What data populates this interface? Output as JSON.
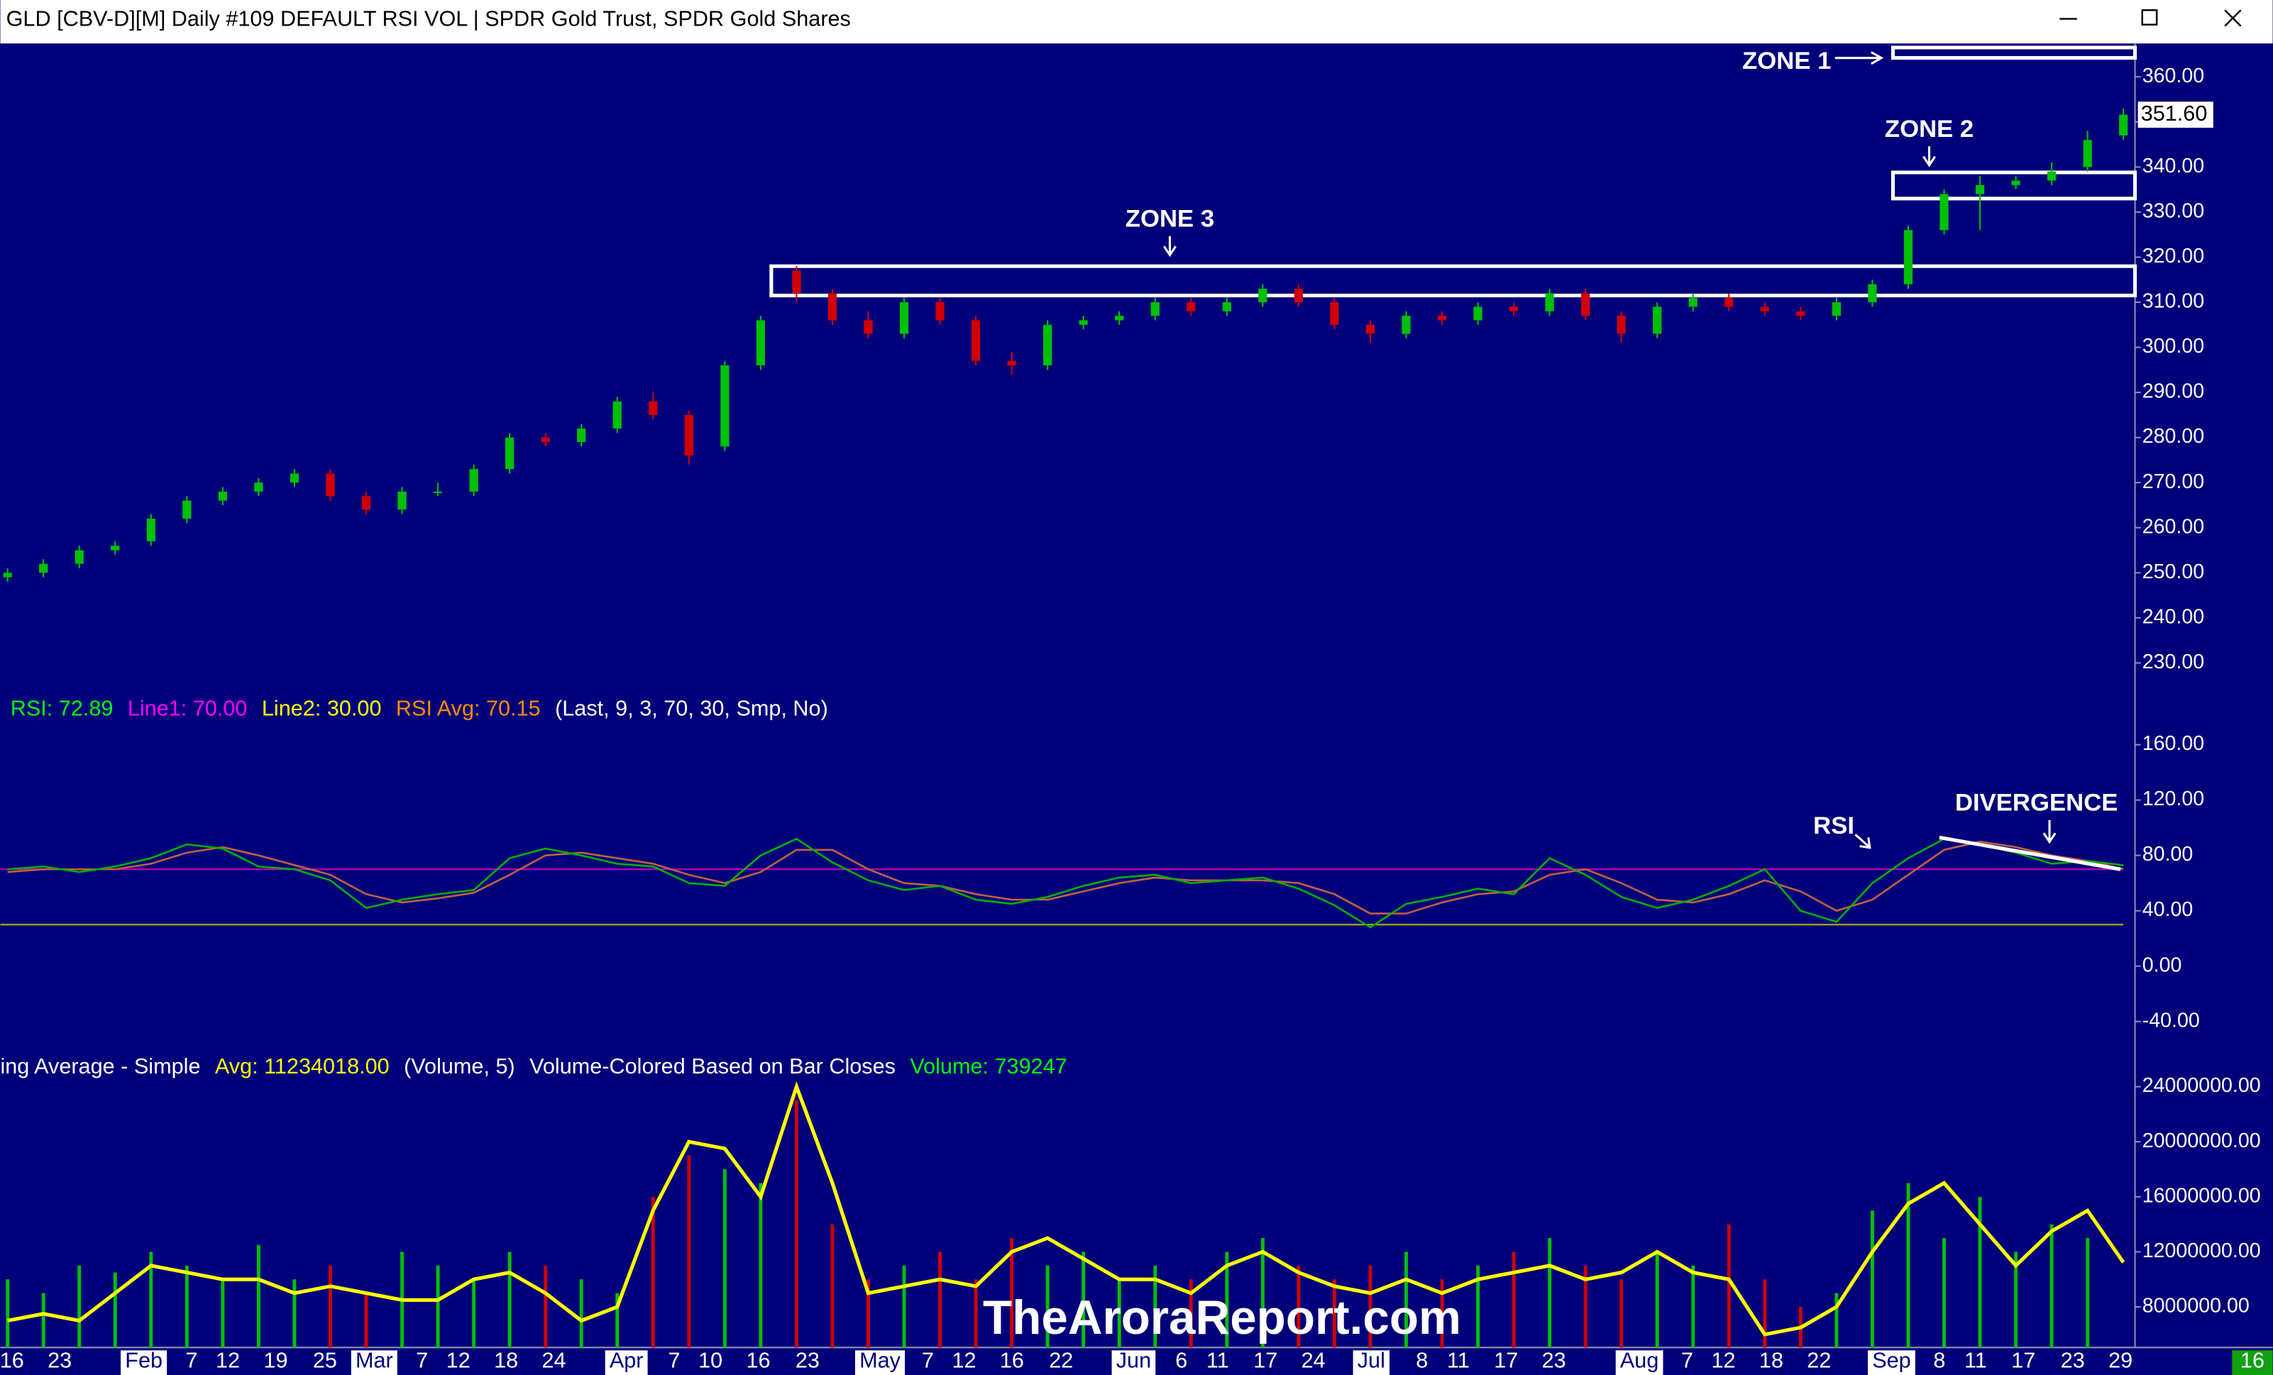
{
  "window": {
    "title": "GLD [CBV-D][M]  Daily #109 DEFAULT RSI VOL | SPDR Gold Trust, SPDR Gold Shares"
  },
  "chart_data": [
    {
      "type": "candlestick",
      "last_label": "351.60",
      "up_color": "#00c000",
      "down_color": "#d00000",
      "open": [
        249,
        250,
        252,
        255,
        257,
        262,
        266,
        268,
        270,
        272,
        267,
        264,
        268,
        268,
        273,
        280,
        279,
        282,
        288,
        285,
        278,
        296,
        317,
        312,
        306,
        303,
        310,
        306,
        297,
        296,
        305,
        306,
        307,
        310,
        308,
        310,
        313,
        310,
        305,
        303,
        307,
        306,
        309,
        308,
        312,
        307,
        303,
        309,
        311,
        309,
        308,
        307,
        310,
        314,
        326,
        334,
        336,
        337,
        340,
        347
      ],
      "high": [
        251,
        253,
        256,
        257,
        263,
        267,
        269,
        271,
        273,
        273,
        268,
        269,
        270,
        274,
        281,
        281,
        283,
        289,
        290,
        286,
        297,
        307,
        318,
        313,
        308,
        311,
        311,
        307,
        299,
        306,
        307,
        308,
        311,
        311,
        311,
        314,
        314,
        311,
        306,
        308,
        308,
        310,
        310,
        313,
        313,
        308,
        310,
        312,
        312,
        310,
        309,
        311,
        315,
        327,
        335,
        338,
        338,
        341,
        348,
        353
      ],
      "low": [
        248,
        249,
        251,
        254,
        256,
        261,
        265,
        267,
        269,
        266,
        263,
        263,
        267,
        267,
        272,
        278,
        278,
        281,
        284,
        274,
        277,
        295,
        310,
        305,
        302,
        302,
        305,
        296,
        294,
        295,
        304,
        305,
        306,
        307,
        307,
        309,
        309,
        304,
        301,
        302,
        305,
        305,
        307,
        307,
        306,
        301,
        302,
        308,
        308,
        307,
        306,
        306,
        309,
        313,
        325,
        326,
        335,
        336,
        339,
        346
      ],
      "close": [
        250,
        252,
        255,
        256,
        262,
        266,
        268,
        270,
        272,
        267,
        264,
        268,
        268,
        273,
        280,
        279,
        282,
        288,
        285,
        276,
        296,
        306,
        312,
        306,
        303,
        310,
        306,
        297,
        296,
        305,
        306,
        307,
        310,
        308,
        310,
        313,
        310,
        305,
        303,
        307,
        306,
        309,
        308,
        312,
        307,
        303,
        309,
        311,
        309,
        308,
        307,
        310,
        314,
        326,
        334,
        336,
        337,
        339,
        346,
        351.6
      ],
      "ylim": [
        226,
        367.4
      ],
      "yticks": [
        {
          "value": 360,
          "label": "360.00"
        },
        {
          "value": 350,
          "label": "350.00"
        },
        {
          "value": 340,
          "label": "340.00"
        },
        {
          "value": 330,
          "label": "330.00"
        },
        {
          "value": 320,
          "label": "320.00"
        },
        {
          "value": 310,
          "label": "310.00"
        },
        {
          "value": 300,
          "label": "300.00"
        },
        {
          "value": 290,
          "label": "290.00"
        },
        {
          "value": 280,
          "label": "280.00"
        },
        {
          "value": 270,
          "label": "270.00"
        },
        {
          "value": 260,
          "label": "260.00"
        },
        {
          "value": 250,
          "label": "250.00"
        },
        {
          "value": 240,
          "label": "240.00"
        },
        {
          "value": 230,
          "label": "230.00"
        }
      ],
      "zones": [
        {
          "label": "ZONE 1",
          "low": 364.2,
          "high": 366.5
        },
        {
          "label": "ZONE 2",
          "low": 333,
          "high": 338.8
        },
        {
          "label": "ZONE 3",
          "low": 311.5,
          "high": 318
        }
      ]
    },
    {
      "type": "line",
      "legend": [
        {
          "text": "RSI: 72.89",
          "color": "#00ff00"
        },
        {
          "text": "Line1: 70.00",
          "color": "#ff00ff"
        },
        {
          "text": "Line2: 30.00",
          "color": "#ffff00"
        },
        {
          "text": "RSI Avg: 70.15",
          "color": "#ff8c00"
        },
        {
          "text": "(Last, 9, 3, 70, 30, Smp, No)",
          "color": "#ffffff"
        }
      ],
      "annotations": [
        "RSI",
        "DIVERGENCE"
      ],
      "series": [
        {
          "color": "#00b000",
          "values": [
            70,
            72,
            68,
            72,
            78,
            88,
            85,
            72,
            70,
            62,
            42,
            48,
            52,
            55,
            78,
            85,
            80,
            74,
            72,
            60,
            58,
            80,
            92,
            75,
            62,
            55,
            58,
            48,
            45,
            50,
            58,
            64,
            66,
            60,
            62,
            64,
            56,
            44,
            28,
            45,
            50,
            56,
            52,
            78,
            66,
            50,
            42,
            48,
            58,
            70,
            40,
            32,
            60,
            78,
            92,
            88,
            82,
            74,
            76,
            72.89
          ]
        },
        {
          "color": "#c06040",
          "values": [
            68,
            70,
            70,
            70,
            74,
            82,
            86,
            80,
            73,
            66,
            52,
            46,
            49,
            53,
            66,
            80,
            82,
            78,
            74,
            66,
            60,
            68,
            84,
            84,
            70,
            60,
            58,
            52,
            48,
            48,
            54,
            60,
            64,
            62,
            62,
            62,
            60,
            52,
            38,
            38,
            46,
            52,
            54,
            66,
            70,
            60,
            48,
            46,
            52,
            62,
            54,
            40,
            48,
            66,
            84,
            90,
            86,
            80,
            76,
            70.15
          ]
        }
      ],
      "levels": [
        {
          "value": 70,
          "color": "#b000b0"
        },
        {
          "value": 30,
          "color": "#a0a000"
        }
      ],
      "ylim": [
        -60,
        200
      ],
      "yticks": [
        {
          "value": 160,
          "label": "160.00"
        },
        {
          "value": 120,
          "label": "120.00"
        },
        {
          "value": 80,
          "label": "80.00"
        },
        {
          "value": 40,
          "label": "40.00"
        },
        {
          "value": 0,
          "label": "0.00"
        },
        {
          "value": -40,
          "label": "-40.00"
        }
      ]
    },
    {
      "type": "volume",
      "legend": [
        {
          "text": "ing Average - Simple",
          "color": "#ffffff"
        },
        {
          "text": "Avg: 11234018.00",
          "color": "#ffff00"
        },
        {
          "text": "(Volume, 5)",
          "color": "#ffffff"
        },
        {
          "text": "Volume-Colored Based on Bar Closes",
          "color": "#ffffff"
        },
        {
          "text": "Volume: 739247",
          "color": "#00ff00"
        }
      ],
      "values": [
        10000000,
        9000000,
        11000000,
        10500000,
        12000000,
        11000000,
        10000000,
        12500000,
        10000000,
        11000000,
        9000000,
        12000000,
        11000000,
        10000000,
        12000000,
        11000000,
        10000000,
        9000000,
        16000000,
        19000000,
        18000000,
        17000000,
        23000000,
        14000000,
        10000000,
        11000000,
        12000000,
        10000000,
        13000000,
        11000000,
        12000000,
        10000000,
        11000000,
        10000000,
        12000000,
        13000000,
        11000000,
        10000000,
        11000000,
        12000000,
        10000000,
        11000000,
        12000000,
        13000000,
        11000000,
        10000000,
        12000000,
        11000000,
        14000000,
        10000000,
        8000000,
        9000000,
        15000000,
        17000000,
        13000000,
        16000000,
        12000000,
        14000000,
        13000000,
        739247
      ],
      "avg": {
        "color": "#ffff00",
        "values": [
          7000000,
          7500000,
          7000000,
          9000000,
          11000000,
          10500000,
          10000000,
          10000000,
          9000000,
          9500000,
          9000000,
          8500000,
          8500000,
          10000000,
          10500000,
          9000000,
          7000000,
          8000000,
          15000000,
          20000000,
          19500000,
          16000000,
          24000000,
          17000000,
          9000000,
          9500000,
          10000000,
          9500000,
          12000000,
          13000000,
          11500000,
          10000000,
          10000000,
          9000000,
          11000000,
          12000000,
          10500000,
          9500000,
          9000000,
          10000000,
          9000000,
          10000000,
          10500000,
          11000000,
          10000000,
          10500000,
          12000000,
          10500000,
          10000000,
          6000000,
          6500000,
          8000000,
          12000000,
          15500000,
          17000000,
          14000000,
          11000000,
          13500000,
          15000000,
          11234018
        ]
      },
      "ylim": [
        5000000,
        26000000
      ],
      "yticks": [
        {
          "value": 24000000,
          "label": "24000000.00"
        },
        {
          "value": 20000000,
          "label": "20000000.00"
        },
        {
          "value": 16000000,
          "label": "16000000.00"
        },
        {
          "value": 12000000,
          "label": "12000000.00"
        },
        {
          "value": 8000000,
          "label": "8000000.00"
        }
      ],
      "date_labels": [
        "16",
        "23",
        "Feb",
        "7",
        "12",
        "19",
        "25",
        "Mar",
        "7",
        "12",
        "18",
        "24",
        "Apr",
        "7",
        "10",
        "16",
        "23",
        "May",
        "7",
        "12",
        "16",
        "22",
        "Jun",
        "6",
        "11",
        "17",
        "24",
        "Jul",
        "8",
        "11",
        "17",
        "23",
        "Aug",
        "7",
        "12",
        "18",
        "22",
        "Sep",
        "8",
        "11",
        "17",
        "23",
        "29"
      ],
      "cursor_label": "16",
      "watermark": "TheAroraReport.com"
    }
  ]
}
